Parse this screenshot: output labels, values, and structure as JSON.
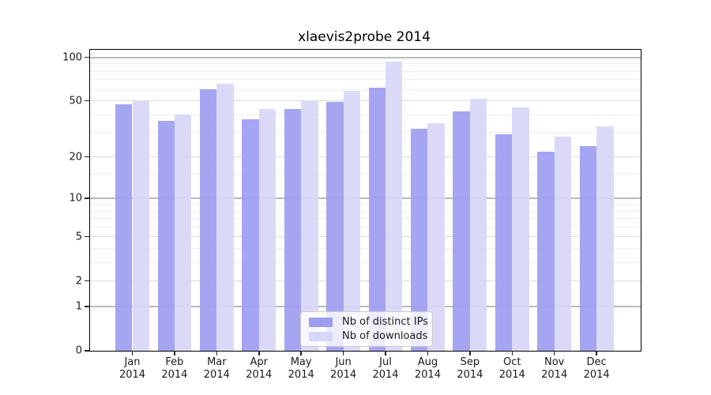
{
  "chart_data": {
    "type": "bar",
    "title": "xlaevis2probe 2014",
    "categories": [
      "Jan",
      "Feb",
      "Mar",
      "Apr",
      "May",
      "Jun",
      "Jul",
      "Aug",
      "Sep",
      "Oct",
      "Nov",
      "Dec"
    ],
    "x_tick_year": "2014",
    "series": [
      {
        "name": "Nb of distinct IPs",
        "color": "#9e9ef0",
        "values": [
          47,
          36,
          60,
          37,
          44,
          49,
          62,
          32,
          42,
          29,
          22,
          24
        ]
      },
      {
        "name": "Nb of downloads",
        "color": "#d7d7f8",
        "values": [
          50,
          40,
          66,
          44,
          50,
          59,
          94,
          35,
          52,
          45,
          28,
          33
        ]
      }
    ],
    "yscale": "log1p",
    "ylim": [
      0,
      113
    ],
    "yticks": [
      100,
      50,
      20,
      10,
      5,
      2,
      1,
      0
    ],
    "yticks_minor": [
      90,
      80,
      70,
      60,
      40,
      30,
      15,
      9,
      8,
      7,
      6,
      4,
      3
    ],
    "yticks_emphasized": [
      100,
      10,
      1
    ],
    "grid": true,
    "legend_position": "lower center"
  },
  "colors": {
    "background": "#ffffff",
    "spine": "#000000",
    "grid_minor": "#efefef",
    "grid_major": "#dcdcdc",
    "grid_emphasized": "#bababa",
    "text": "#1a1a1a",
    "legend_border": "#cccccc"
  }
}
